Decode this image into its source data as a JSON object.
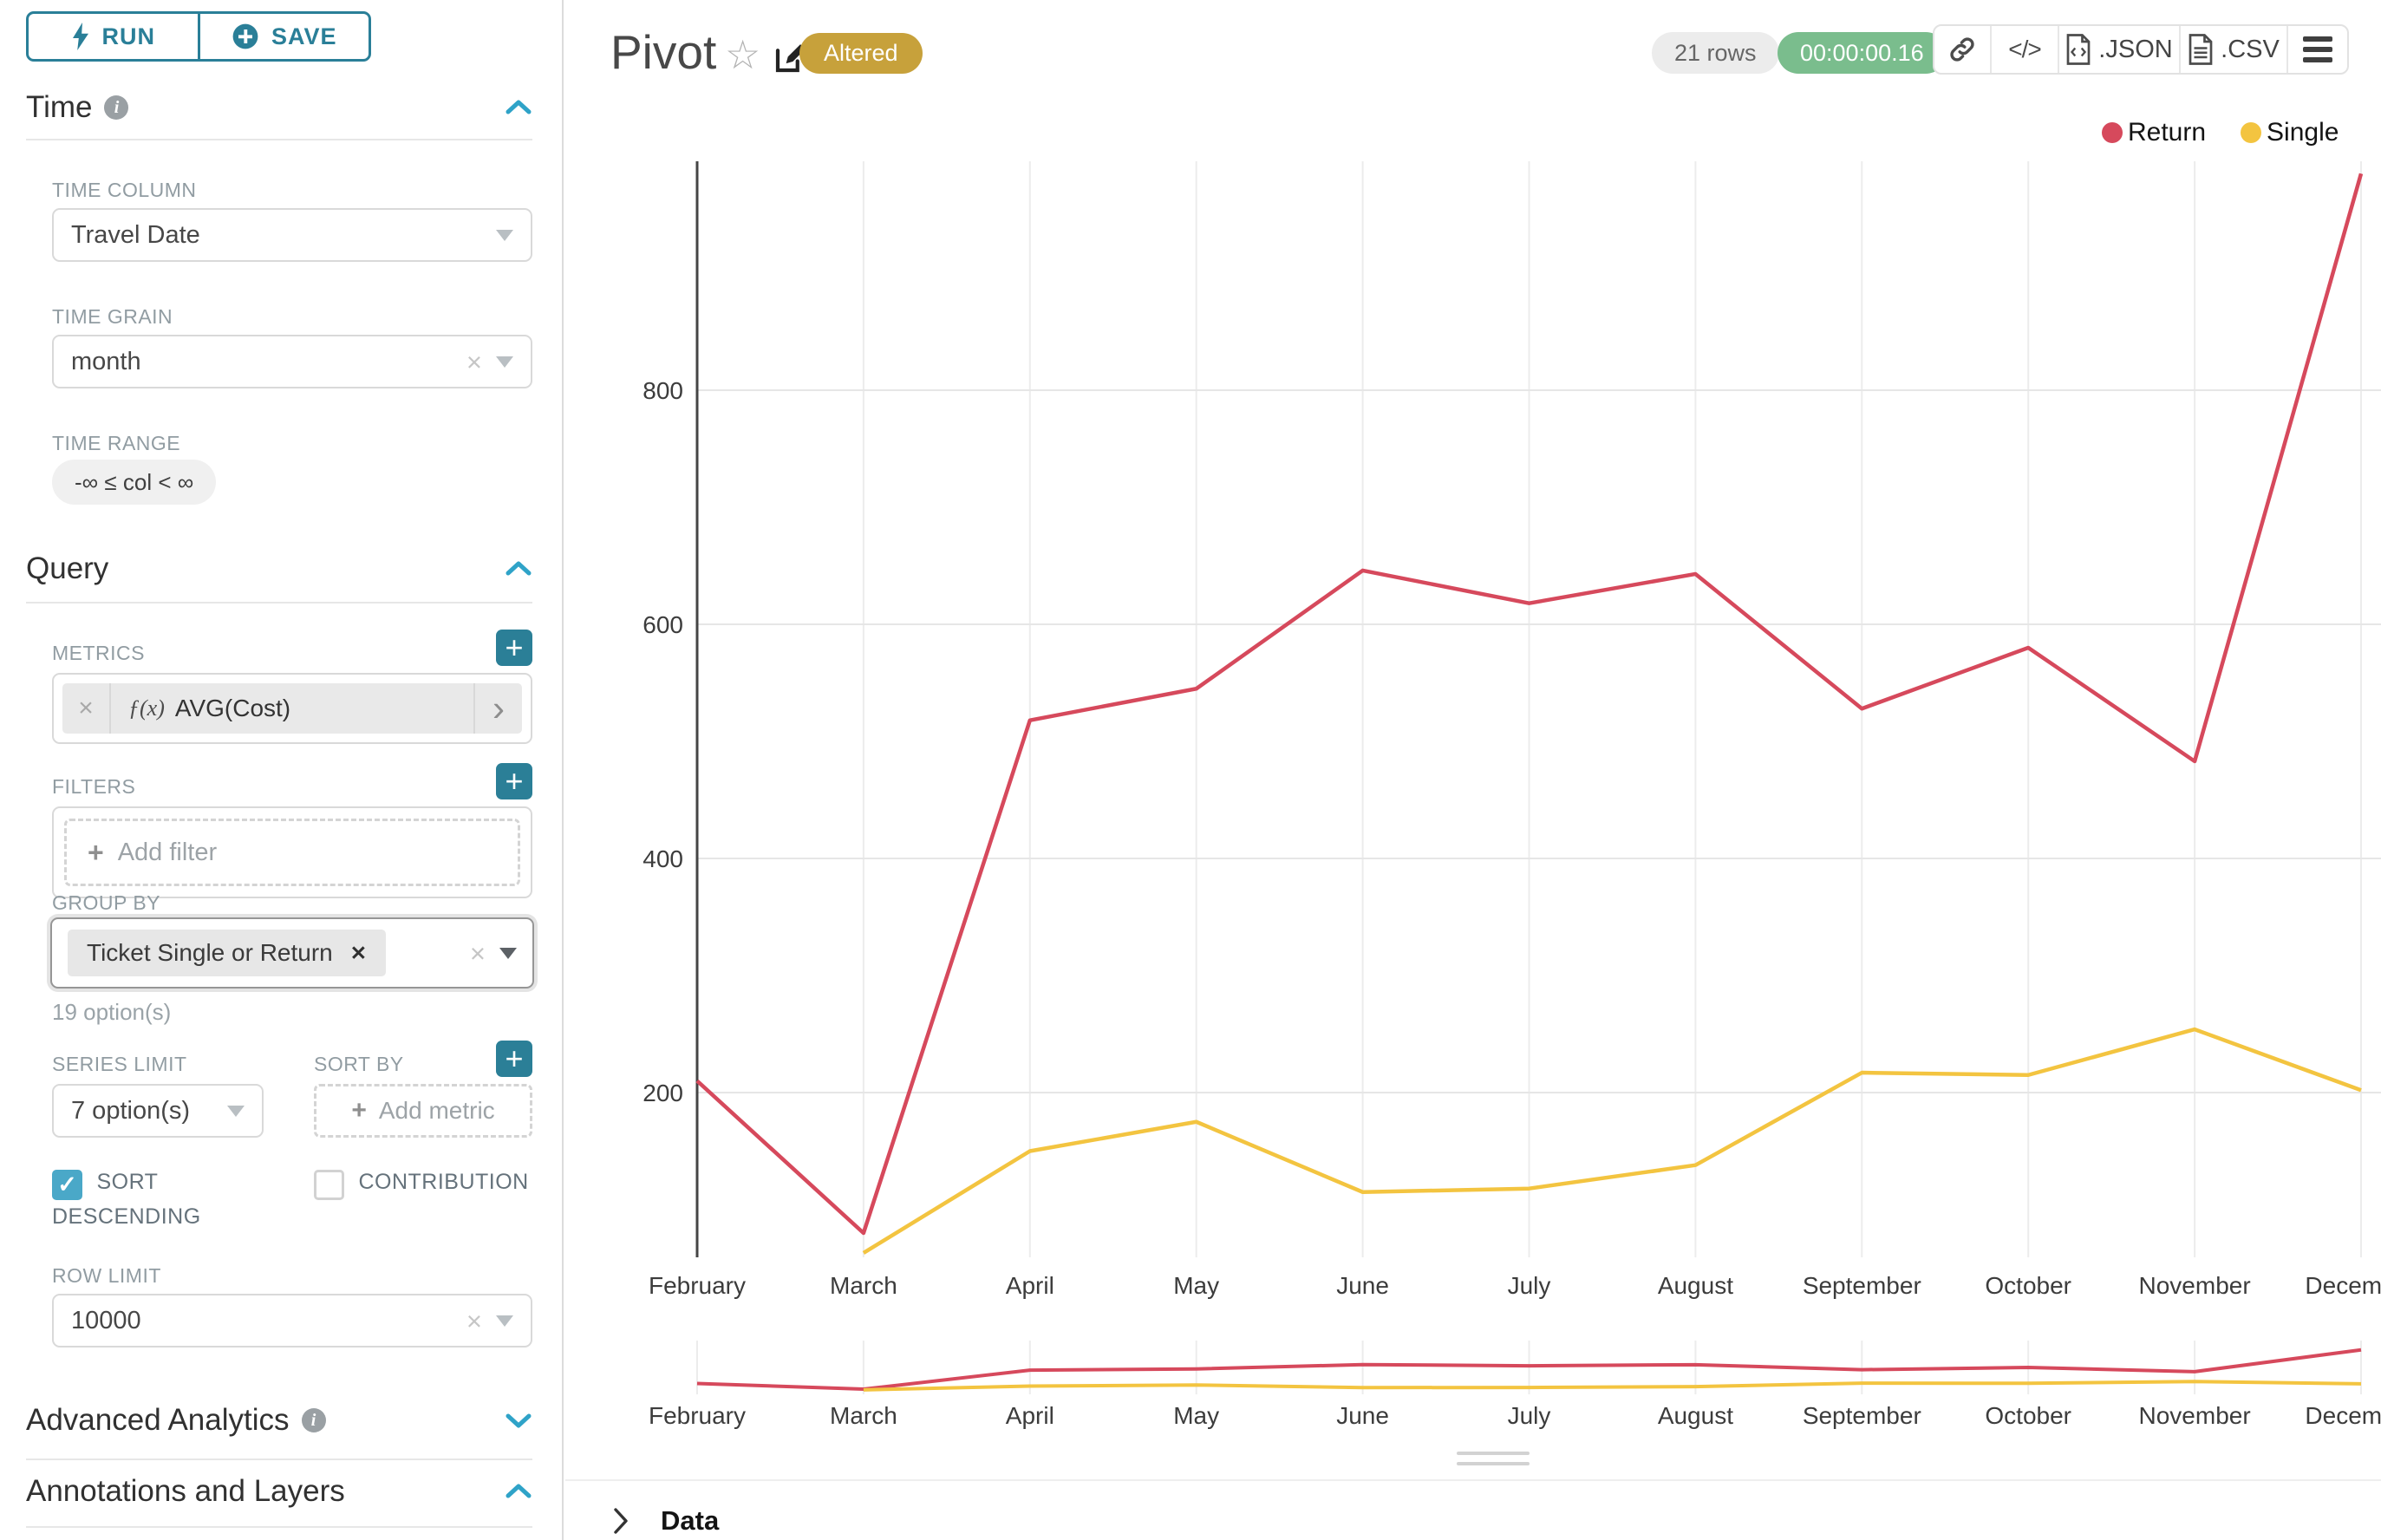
{
  "toolbar": {
    "run_label": "RUN",
    "save_label": "SAVE"
  },
  "icons": {
    "plus": "+",
    "clear": "×",
    "remove": "✕",
    "chevron_right": "›",
    "check": "✓",
    "info": "i",
    "code": "</>",
    "fx": "ƒ(x)",
    "star": "☆"
  },
  "sidebar": {
    "time": {
      "title": "Time",
      "time_column": {
        "label": "TIME COLUMN",
        "value": "Travel Date"
      },
      "time_grain": {
        "label": "TIME GRAIN",
        "value": "month"
      },
      "time_range": {
        "label": "TIME RANGE",
        "value": "-∞ ≤ col < ∞"
      }
    },
    "query": {
      "title": "Query",
      "metrics": {
        "label": "METRICS",
        "metric_name": "AVG(Cost)"
      },
      "filters": {
        "label": "FILTERS",
        "placeholder": "Add filter"
      },
      "group_by": {
        "label": "GROUP BY",
        "value": "Ticket Single or Return",
        "hint": "19 option(s)"
      },
      "series_limit": {
        "label": "SERIES LIMIT",
        "value": "7 option(s)"
      },
      "sort_by": {
        "label": "SORT BY",
        "placeholder": "Add metric"
      },
      "sort_descending_label": "SORT DESCENDING",
      "contribution_label": "CONTRIBUTION",
      "row_limit": {
        "label": "ROW LIMIT",
        "value": "10000"
      }
    },
    "advanced_analytics": {
      "title": "Advanced Analytics"
    },
    "annotations": {
      "title": "Annotations and Layers"
    }
  },
  "header": {
    "title": "Pivot",
    "status_badge": "Altered",
    "rows_badge": "21 rows",
    "duration_badge": "00:00:00.16",
    "export_json_label": ".JSON",
    "export_csv_label": ".CSV"
  },
  "data_panel": {
    "label": "Data"
  },
  "colors": {
    "accent_teal": "#2a7f98",
    "chevron_teal": "#2fa3c8",
    "badge_gold": "#c7a13b",
    "badge_green": "#7abd8d",
    "return_red": "#d6495c",
    "single_yellow": "#f3c440"
  },
  "chart_data": {
    "type": "line",
    "categories": [
      "February",
      "March",
      "April",
      "May",
      "June",
      "July",
      "August",
      "September",
      "October",
      "November",
      "December"
    ],
    "series": [
      {
        "name": "Return",
        "color": "#d6495c",
        "values": [
          210,
          80,
          518,
          545,
          646,
          618,
          643,
          528,
          580,
          483,
          985
        ]
      },
      {
        "name": "Single",
        "color": "#f3c440",
        "values": [
          null,
          63,
          150,
          175,
          115,
          118,
          138,
          217,
          215,
          254,
          202
        ]
      }
    ],
    "xlabel": "",
    "ylabel": "",
    "yticks": [
      200,
      400,
      600,
      800
    ],
    "ylim": [
      60,
      1000
    ],
    "grid": true,
    "legend_position": "top-right",
    "has_preview_brush": true
  }
}
